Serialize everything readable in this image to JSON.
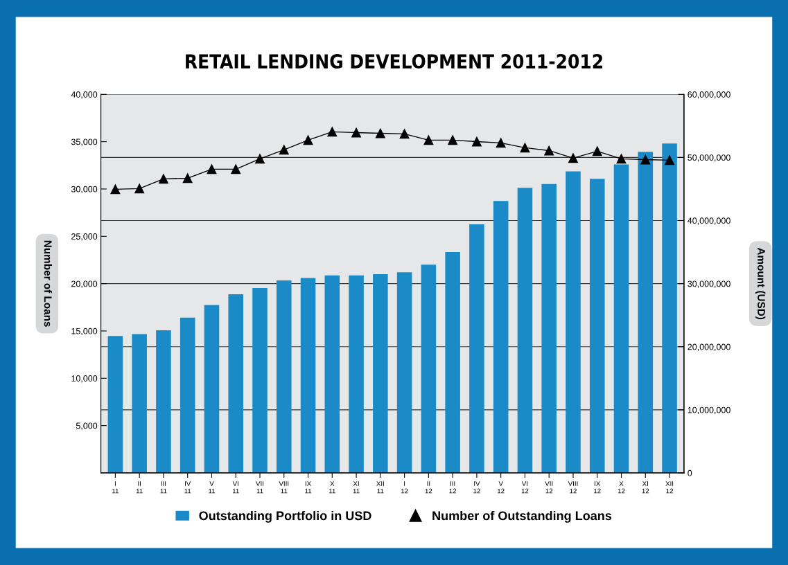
{
  "chart_data": {
    "type": "bar",
    "title": "RETAIL LENDING DEVELOPMENT 2011-2012",
    "ylabel": "Number of Loans",
    "y2label": "Amount (USD)",
    "categories": [
      "I\n11",
      "II\n11",
      "III\n11",
      "IV\n11",
      "V\n11",
      "VI\n11",
      "VII\n11",
      "VIII\n11",
      "IX\n11",
      "X\n11",
      "XI\n11",
      "XII\n11",
      "I\n12",
      "II\n12",
      "III\n12",
      "IV\n12",
      "V\n12",
      "VI\n12",
      "VII\n12",
      "VIII\n12",
      "IX\n12",
      "X\n12",
      "XI\n12",
      "XII\n12"
    ],
    "series": [
      {
        "name": "Outstanding Portfolio in USD",
        "axis": "y2",
        "color": "#1a8bc6",
        "values": [
          21700000,
          22000000,
          22600000,
          24600000,
          26600000,
          28300000,
          29300000,
          30500000,
          30900000,
          31300000,
          31300000,
          31500000,
          31800000,
          33000000,
          35000000,
          39400000,
          43100000,
          45200000,
          45800000,
          47800000,
          46600000,
          48900000,
          50900000,
          52200000
        ]
      },
      {
        "name": "Number of Outstanding Loans",
        "type": "line",
        "axis": "y",
        "color": "#000000",
        "marker": "triangle",
        "values": [
          29970,
          30040,
          31070,
          31140,
          32090,
          32090,
          33190,
          34140,
          35160,
          36040,
          35960,
          35890,
          35820,
          35160,
          35160,
          35010,
          34870,
          34360,
          34060,
          33260,
          33990,
          33190,
          33110,
          33040
        ]
      }
    ],
    "ylim": [
      0,
      40000
    ],
    "yticks": [
      {
        "value": 5000,
        "label": "5,000"
      },
      {
        "value": 10000,
        "label": "10,000"
      },
      {
        "value": 15000,
        "label": "15,000"
      },
      {
        "value": 20000,
        "label": "20,000"
      },
      {
        "value": 25000,
        "label": "25,000"
      },
      {
        "value": 30000,
        "label": "30,000"
      },
      {
        "value": 35000,
        "label": "35,000"
      },
      {
        "value": 40000,
        "label": "40,000"
      }
    ],
    "y2lim": [
      0,
      60000000
    ],
    "y2ticks": [
      0,
      {
        "value": 10000000,
        "label": "10,000,000"
      },
      {
        "value": 20000000,
        "label": "20,000,000"
      },
      {
        "value": 30000000,
        "label": "30,000,000"
      },
      {
        "value": 40000000,
        "label": "40,000,000"
      },
      {
        "value": 50000000,
        "label": "50,000,000"
      },
      {
        "value": 60000000,
        "label": "60,000,000"
      }
    ],
    "grid": true,
    "legend": "bottom"
  }
}
